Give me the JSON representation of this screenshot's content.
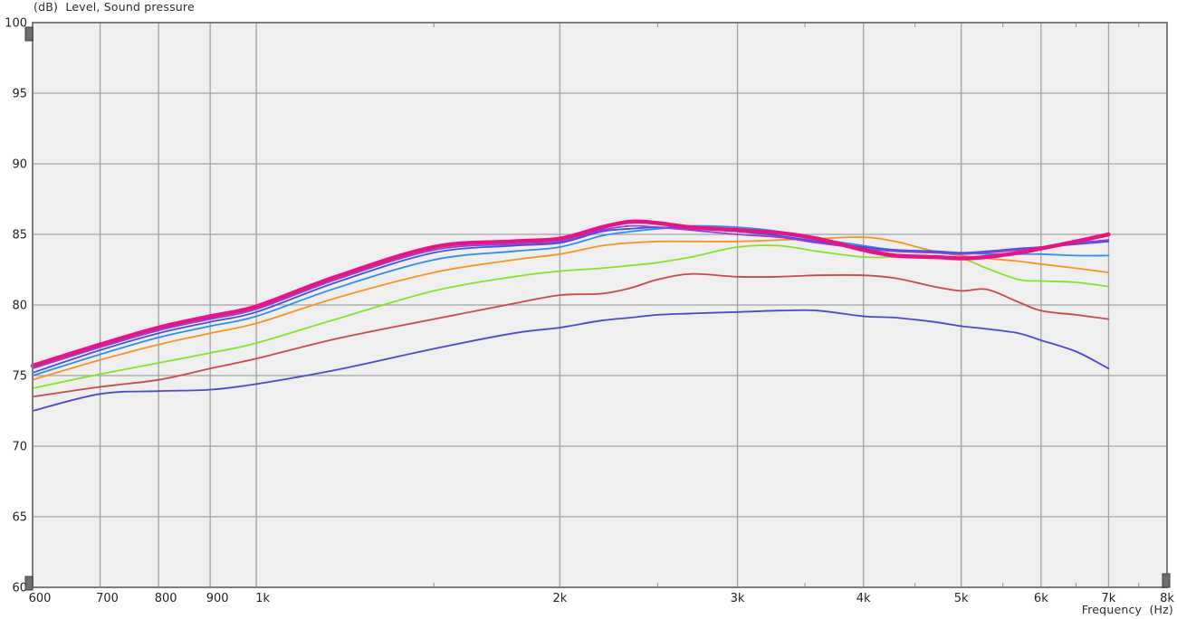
{
  "header": {
    "title": "(dB)  Level, Sound pressure"
  },
  "chart_data": {
    "type": "line",
    "title": "(dB)  Level, Sound pressure",
    "xlabel": "Frequency  (Hz)",
    "ylabel": "(dB)",
    "x_scale": "log",
    "xlim": [
      600,
      8000
    ],
    "ylim": [
      60,
      100
    ],
    "grid": true,
    "legend": "none",
    "plot_background": "#efefef",
    "grid_color": "#a2a2a2",
    "border_color": "#7d7d7d",
    "y_ticks": [
      60,
      65,
      70,
      75,
      80,
      85,
      90,
      95,
      100
    ],
    "x_ticks": [
      {
        "value": 600,
        "label": "600",
        "dx": 8
      },
      {
        "value": 700,
        "label": "700",
        "dx": 8
      },
      {
        "value": 800,
        "label": "800",
        "dx": 8
      },
      {
        "value": 900,
        "label": "900",
        "dx": 8
      },
      {
        "value": 1000,
        "label": "1k",
        "dx": 7
      },
      {
        "value": 2000,
        "label": "2k",
        "dx": 0
      },
      {
        "value": 3000,
        "label": "3k",
        "dx": 0
      },
      {
        "value": 4000,
        "label": "4k",
        "dx": 0
      },
      {
        "value": 5000,
        "label": "5k",
        "dx": 0
      },
      {
        "value": 6000,
        "label": "6k",
        "dx": 0
      },
      {
        "value": 7000,
        "label": "7k",
        "dx": 0
      },
      {
        "value": 8000,
        "label": "8k",
        "dx": 0
      }
    ],
    "x_minor_ticks": [
      1500,
      2500,
      3500,
      4500,
      5500,
      6500,
      7500
    ],
    "x": [
      600,
      700,
      800,
      900,
      1000,
      1200,
      1500,
      1800,
      2000,
      2200,
      2350,
      2500,
      2700,
      3000,
      3300,
      3600,
      4000,
      4300,
      4700,
      5000,
      5300,
      5700,
      6000,
      6500,
      7000
    ],
    "series": [
      {
        "name": "curve-darkblue",
        "color": "#4a4ac8",
        "width": 1.8,
        "values": [
          72.5,
          73.7,
          73.9,
          74.0,
          74.4,
          75.4,
          76.9,
          78.0,
          78.4,
          78.9,
          79.1,
          79.3,
          79.4,
          79.5,
          79.6,
          79.6,
          79.2,
          79.1,
          78.8,
          78.5,
          78.3,
          78.0,
          77.5,
          76.7,
          75.5
        ]
      },
      {
        "name": "curve-red",
        "color": "#c64a4a",
        "width": 1.8,
        "values": [
          73.5,
          74.2,
          74.7,
          75.5,
          76.2,
          77.6,
          79.0,
          80.1,
          80.7,
          80.8,
          81.2,
          81.8,
          82.2,
          82.0,
          82.0,
          82.1,
          82.1,
          81.9,
          81.3,
          81.0,
          81.1,
          80.2,
          79.6,
          79.3,
          79.0
        ]
      },
      {
        "name": "curve-green",
        "color": "#85e226",
        "width": 1.8,
        "values": [
          74.1,
          75.1,
          75.9,
          76.6,
          77.3,
          79.0,
          81.0,
          82.0,
          82.4,
          82.6,
          82.8,
          83.0,
          83.4,
          84.1,
          84.2,
          83.8,
          83.4,
          83.4,
          83.4,
          83.3,
          82.6,
          81.8,
          81.7,
          81.6,
          81.3
        ]
      },
      {
        "name": "curve-orange",
        "color": "#f7941e",
        "width": 1.8,
        "values": [
          74.7,
          76.1,
          77.2,
          78.0,
          78.7,
          80.5,
          82.3,
          83.2,
          83.6,
          84.2,
          84.4,
          84.5,
          84.5,
          84.5,
          84.6,
          84.7,
          84.8,
          84.5,
          83.8,
          83.5,
          83.3,
          83.1,
          82.9,
          82.6,
          82.3
        ]
      },
      {
        "name": "curve-skyblue",
        "color": "#2f8dee",
        "width": 1.8,
        "values": [
          75.0,
          76.5,
          77.7,
          78.5,
          79.2,
          81.2,
          83.2,
          83.8,
          84.1,
          84.9,
          85.2,
          85.4,
          85.6,
          85.5,
          85.2,
          84.7,
          84.2,
          83.9,
          83.8,
          83.7,
          83.6,
          83.6,
          83.6,
          83.5,
          83.5
        ]
      },
      {
        "name": "curve-blue",
        "color": "#3a55e0",
        "width": 1.8,
        "values": [
          75.2,
          76.8,
          78.0,
          78.8,
          79.5,
          81.6,
          83.7,
          84.2,
          84.4,
          85.2,
          85.4,
          85.5,
          85.4,
          85.2,
          84.9,
          84.5,
          84.1,
          83.9,
          83.8,
          83.7,
          83.8,
          84.0,
          84.1,
          84.3,
          84.5
        ]
      },
      {
        "name": "curve-purple",
        "color": "#9040d8",
        "width": 1.8,
        "values": [
          75.5,
          77.0,
          78.2,
          79.0,
          79.7,
          81.8,
          83.9,
          84.3,
          84.5,
          85.3,
          85.6,
          85.5,
          85.3,
          85.0,
          84.8,
          84.4,
          84.0,
          83.8,
          83.7,
          83.6,
          83.7,
          83.9,
          84.1,
          84.4,
          84.6
        ]
      },
      {
        "name": "curve-magenta-thick",
        "color": "#ec1286",
        "width": 4.5,
        "values": [
          75.7,
          77.2,
          78.4,
          79.2,
          79.9,
          82.0,
          84.1,
          84.5,
          84.7,
          85.5,
          85.9,
          85.8,
          85.5,
          85.3,
          85.1,
          84.7,
          83.9,
          83.5,
          83.4,
          83.3,
          83.4,
          83.7,
          84.0,
          84.5,
          85.0
        ]
      }
    ]
  }
}
